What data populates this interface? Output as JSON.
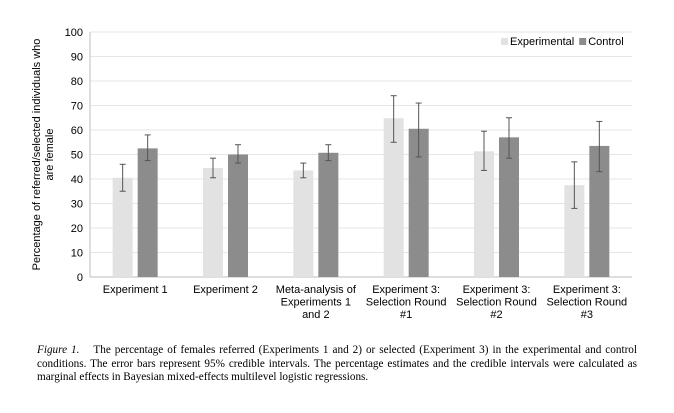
{
  "chart_data": {
    "type": "bar",
    "ylabel_lines": [
      "Percentage of referred/selected individuals who",
      "are female"
    ],
    "xlabel": "",
    "ylim": [
      0,
      100
    ],
    "yticks": [
      0,
      10,
      20,
      30,
      40,
      50,
      60,
      70,
      80,
      90,
      100
    ],
    "grid": true,
    "legend_position": "top-right",
    "categories": [
      [
        "Experiment 1"
      ],
      [
        "Experiment 2"
      ],
      [
        "Meta-analysis of",
        "Experiments 1",
        "and 2"
      ],
      [
        "Experiment 3:",
        "Selection Round",
        "#1"
      ],
      [
        "Experiment 3:",
        "Selection Round",
        "#2"
      ],
      [
        "Experiment 3:",
        "Selection Round",
        "#3"
      ]
    ],
    "series": [
      {
        "name": "Experimental",
        "color": "#e2e2e2",
        "values": [
          40.5,
          44.5,
          43.5,
          64.8,
          51.3,
          37.5
        ],
        "ci_low": [
          35,
          40.5,
          40.5,
          55,
          43.5,
          28
        ],
        "ci_high": [
          46,
          48.5,
          46.5,
          74,
          59.5,
          47
        ]
      },
      {
        "name": "Control",
        "color": "#8c8c8c",
        "values": [
          52.5,
          50,
          50.7,
          60.5,
          57,
          53.5
        ],
        "ci_low": [
          47.5,
          46.5,
          47.5,
          49,
          48.5,
          43
        ],
        "ci_high": [
          58,
          54,
          54,
          71,
          65,
          63.5
        ]
      }
    ]
  },
  "caption": {
    "figure_label": "Figure 1.",
    "text": "The percentage of females referred (Experiments 1 and 2) or selected (Experiment 3) in the experimental and control conditions. The error bars represent 95% credible intervals. The percentage estimates and the credible intervals were calculated as marginal effects in Bayesian mixed-effects multilevel logistic regressions."
  }
}
